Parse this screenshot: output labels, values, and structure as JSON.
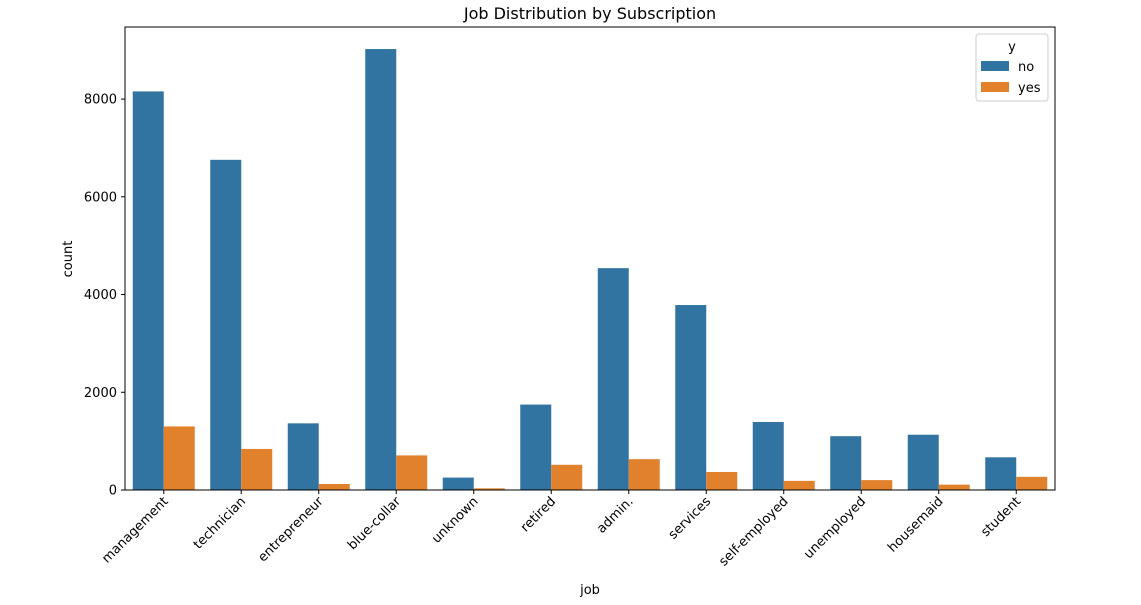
{
  "chart_data": {
    "type": "bar",
    "title": "Job Distribution by Subscription",
    "xlabel": "job",
    "ylabel": "count",
    "categories": [
      "management",
      "technician",
      "entrepreneur",
      "blue-collar",
      "unknown",
      "retired",
      "admin.",
      "services",
      "self-employed",
      "unemployed",
      "housemaid",
      "student"
    ],
    "series": [
      {
        "name": "no",
        "color": "#3274a1",
        "values": [
          8157,
          6757,
          1364,
          9024,
          254,
          1748,
          4540,
          3785,
          1392,
          1101,
          1131,
          669
        ]
      },
      {
        "name": "yes",
        "color": "#e1812c",
        "values": [
          1301,
          840,
          123,
          708,
          34,
          516,
          631,
          369,
          187,
          202,
          109,
          269
        ]
      }
    ],
    "ylim": [
      0,
      9475
    ],
    "yticks": [
      {
        "value": 0,
        "label": "0"
      },
      {
        "value": 2000,
        "label": "2000"
      },
      {
        "value": 4000,
        "label": "4000"
      },
      {
        "value": 6000,
        "label": "6000"
      },
      {
        "value": 8000,
        "label": "8000"
      }
    ],
    "legend": {
      "title": "y",
      "placement": "top-right"
    },
    "grid": false
  }
}
